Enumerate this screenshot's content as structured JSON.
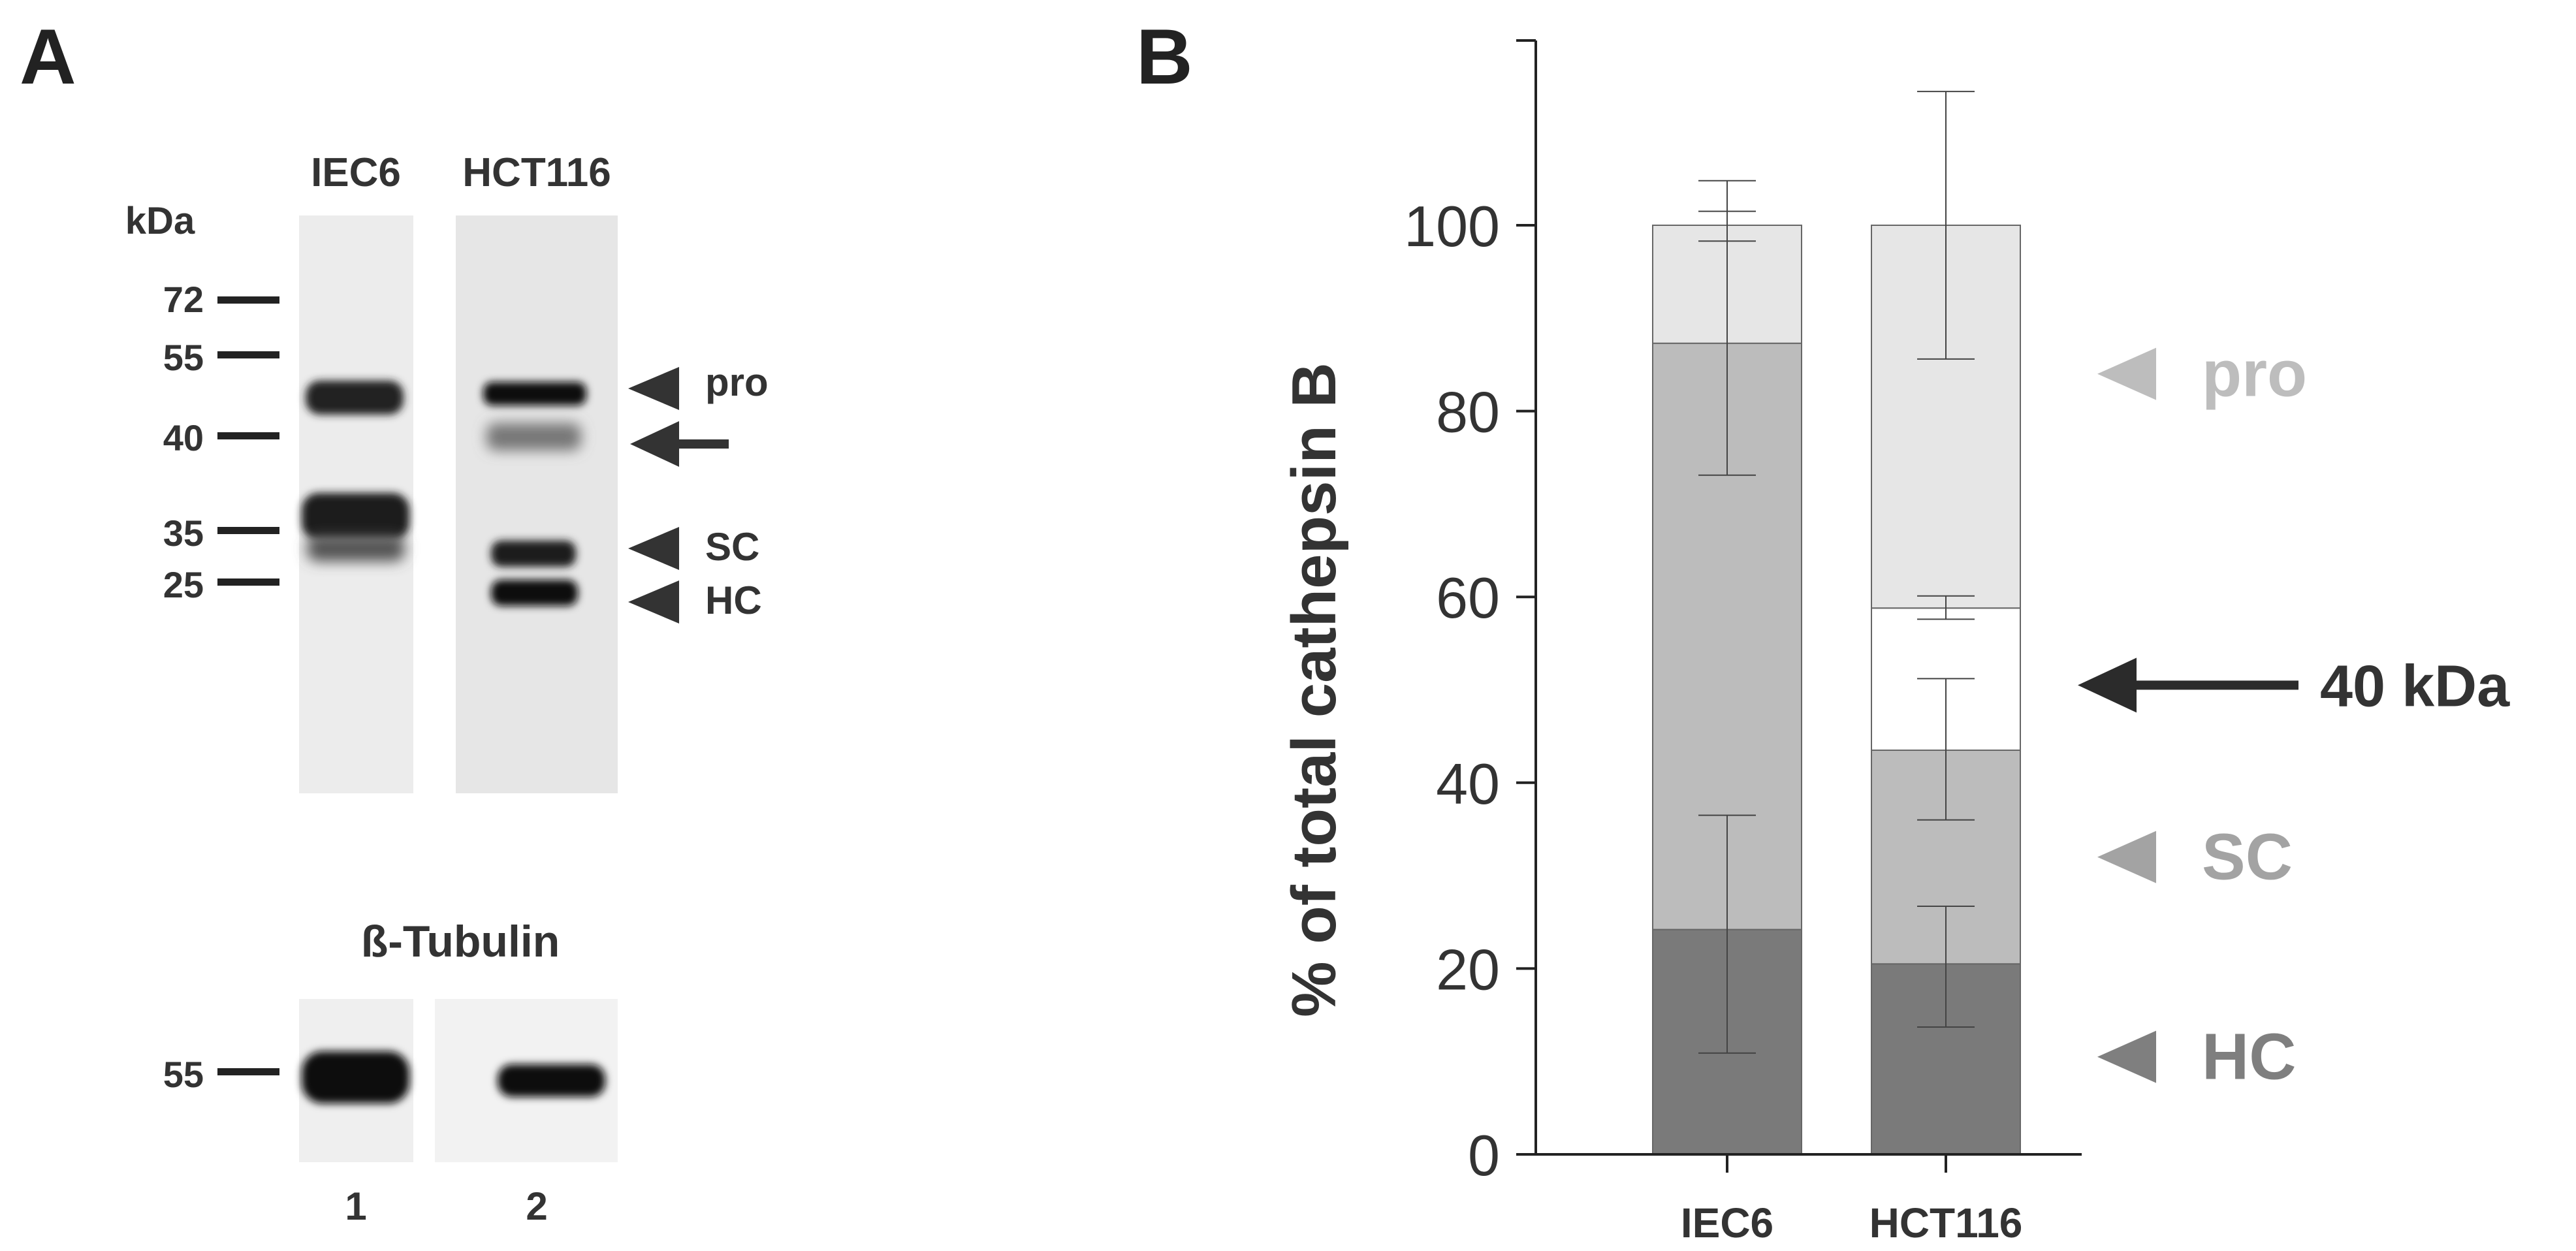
{
  "panel_a": {
    "letter": "A",
    "lane_headers": [
      "IEC6",
      "HCT116"
    ],
    "unit_label": "kDa",
    "markers": [
      "72",
      "55",
      "40",
      "35",
      "25"
    ],
    "band_labels": [
      "pro",
      "SC",
      "HC"
    ],
    "tubulin": {
      "title": "ß-Tubulin",
      "marker": "55"
    },
    "lane_numbers": [
      "1",
      "2"
    ]
  },
  "panel_b": {
    "letter": "B"
  },
  "chart_data": {
    "type": "bar",
    "stacked": true,
    "title": "",
    "xlabel": "",
    "ylabel": "% of total cathepsin B",
    "ylim": [
      0,
      120
    ],
    "yticks": [
      0,
      20,
      40,
      60,
      80,
      100
    ],
    "categories": [
      "IEC6",
      "HCT116"
    ],
    "series": [
      {
        "name": "HC",
        "color": "#7a7a7a",
        "values": [
          24.2,
          20.5
        ],
        "error_upper": [
          12.3,
          6.2
        ],
        "error_lower": [
          13.3,
          6.8
        ]
      },
      {
        "name": "SC",
        "color": "#bcbcbc",
        "values": [
          63.1,
          23.0
        ],
        "error_upper": [
          14.2,
          7.7
        ],
        "error_lower": [
          14.2,
          7.5
        ]
      },
      {
        "name": "40 kDa",
        "color": "#ffffff",
        "values": [
          0.0,
          15.3
        ],
        "error_upper": [
          0.0,
          1.3
        ],
        "error_lower": [
          0.0,
          1.2
        ]
      },
      {
        "name": "pro",
        "color": "#e6e6e6",
        "values": [
          12.7,
          41.2
        ],
        "error_upper": [
          4.8,
          14.4
        ],
        "error_lower": [
          1.7,
          14.4
        ]
      }
    ],
    "annotations": [
      {
        "label": "pro",
        "color": "#bdbdbd",
        "y": 84,
        "marker": "arrowhead"
      },
      {
        "label": "40 kDa",
        "color": "#2b2b2b",
        "y": 50.5,
        "marker": "arrow"
      },
      {
        "label": "SC",
        "color": "#a3a3a3",
        "y": 32,
        "marker": "arrowhead"
      },
      {
        "label": "HC",
        "color": "#7f7f7f",
        "y": 10.5,
        "marker": "arrowhead"
      }
    ]
  }
}
